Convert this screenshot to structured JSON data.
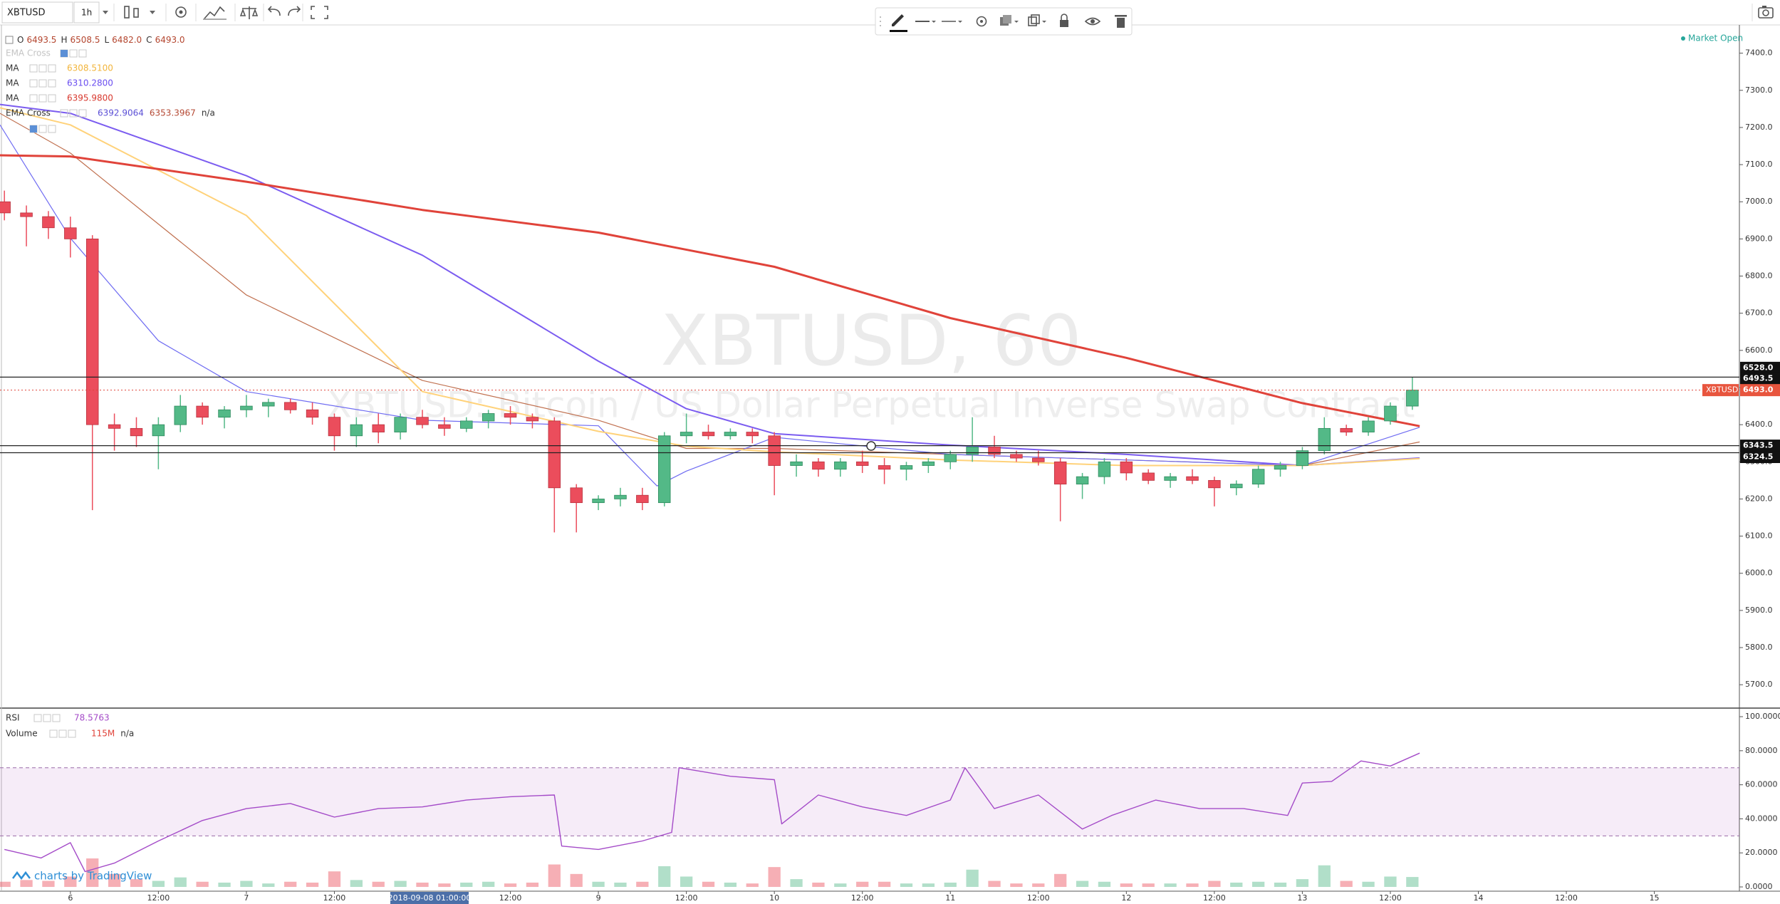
{
  "chart_data": {
    "type": "candlestick",
    "symbol": "XBTUSD",
    "interval": "1h",
    "watermark": "XBTUSD, 60",
    "description": "XBTUSD: Bitcoin / US Dollar Perpetual Inverse Swap Contract",
    "status": "Market Open",
    "branding": "charts by TradingView",
    "crosshair_time": "2018-09-08 01:00:00",
    "ohlc_legend": [
      {
        "key": "O",
        "value": "6493.5"
      },
      {
        "key": "H",
        "value": "6508.5"
      },
      {
        "key": "L",
        "value": "6482.0"
      },
      {
        "key": "C",
        "value": "6493.0"
      }
    ],
    "studies": [
      {
        "name": "EMA Cross",
        "faded": true,
        "values": []
      },
      {
        "name": "MA",
        "faded": false,
        "values": [
          "6308.5100"
        ],
        "colors": [
          "#f2b53c"
        ]
      },
      {
        "name": "MA",
        "faded": false,
        "values": [
          "6310.2800"
        ],
        "colors": [
          "#6a4ef0"
        ]
      },
      {
        "name": "MA",
        "faded": false,
        "values": [
          "6395.9800"
        ],
        "colors": [
          "#d8392f"
        ]
      },
      {
        "name": "EMA Cross",
        "faded": false,
        "values": [
          "6392.9064",
          "6353.3967",
          "n/a"
        ],
        "colors": [
          "#5b4fd6",
          "#b54a35",
          "#333333"
        ]
      }
    ],
    "up_color": "#53b987",
    "down_color": "#eb4d5c",
    "x": [
      -9,
      -6,
      -3,
      0,
      3,
      6,
      9,
      12,
      15,
      18,
      21,
      24,
      27,
      30,
      33,
      36,
      39,
      42,
      45,
      48,
      51,
      54,
      57,
      60,
      63,
      66,
      69,
      72,
      75,
      78,
      81,
      84,
      87,
      90,
      93,
      96,
      99,
      102,
      105,
      108,
      111,
      114,
      117,
      120,
      123,
      126,
      129,
      132,
      135,
      138,
      141,
      144,
      147,
      150,
      153,
      156,
      159,
      162,
      165,
      168,
      171,
      174,
      177,
      180,
      183
    ],
    "ohlc": [
      [
        7000,
        7030,
        6950,
        6970
      ],
      [
        6970,
        6990,
        6880,
        6960
      ],
      [
        6960,
        6975,
        6900,
        6930
      ],
      [
        6930,
        6960,
        6850,
        6900
      ],
      [
        6900,
        6910,
        6170,
        6400
      ],
      [
        6400,
        6430,
        6330,
        6390
      ],
      [
        6390,
        6420,
        6340,
        6370
      ],
      [
        6370,
        6420,
        6280,
        6400
      ],
      [
        6400,
        6480,
        6380,
        6450
      ],
      [
        6450,
        6460,
        6400,
        6420
      ],
      [
        6420,
        6450,
        6390,
        6440
      ],
      [
        6440,
        6480,
        6420,
        6450
      ],
      [
        6450,
        6470,
        6420,
        6460
      ],
      [
        6460,
        6470,
        6430,
        6440
      ],
      [
        6440,
        6460,
        6400,
        6420
      ],
      [
        6420,
        6430,
        6330,
        6370
      ],
      [
        6370,
        6420,
        6340,
        6400
      ],
      [
        6400,
        6430,
        6350,
        6380
      ],
      [
        6380,
        6430,
        6360,
        6420
      ],
      [
        6420,
        6440,
        6390,
        6400
      ],
      [
        6400,
        6420,
        6370,
        6390
      ],
      [
        6390,
        6420,
        6380,
        6410
      ],
      [
        6410,
        6440,
        6390,
        6430
      ],
      [
        6430,
        6450,
        6400,
        6420
      ],
      [
        6420,
        6430,
        6390,
        6410
      ],
      [
        6410,
        6420,
        6110,
        6230
      ],
      [
        6230,
        6240,
        6110,
        6190
      ],
      [
        6190,
        6210,
        6170,
        6200
      ],
      [
        6200,
        6230,
        6180,
        6210
      ],
      [
        6210,
        6230,
        6170,
        6190
      ],
      [
        6190,
        6380,
        6180,
        6370
      ],
      [
        6370,
        6430,
        6350,
        6380
      ],
      [
        6380,
        6400,
        6360,
        6370
      ],
      [
        6370,
        6390,
        6360,
        6380
      ],
      [
        6380,
        6390,
        6350,
        6370
      ],
      [
        6370,
        6380,
        6210,
        6290
      ],
      [
        6290,
        6320,
        6260,
        6300
      ],
      [
        6300,
        6310,
        6260,
        6280
      ],
      [
        6280,
        6310,
        6260,
        6300
      ],
      [
        6300,
        6330,
        6270,
        6290
      ],
      [
        6290,
        6310,
        6240,
        6280
      ],
      [
        6280,
        6300,
        6250,
        6290
      ],
      [
        6290,
        6310,
        6270,
        6300
      ],
      [
        6300,
        6330,
        6280,
        6320
      ],
      [
        6320,
        6420,
        6300,
        6340
      ],
      [
        6340,
        6370,
        6310,
        6320
      ],
      [
        6320,
        6330,
        6300,
        6310
      ],
      [
        6310,
        6330,
        6290,
        6300
      ],
      [
        6300,
        6310,
        6140,
        6240
      ],
      [
        6240,
        6270,
        6200,
        6260
      ],
      [
        6260,
        6310,
        6240,
        6300
      ],
      [
        6300,
        6310,
        6250,
        6270
      ],
      [
        6270,
        6280,
        6240,
        6250
      ],
      [
        6250,
        6270,
        6230,
        6260
      ],
      [
        6260,
        6280,
        6240,
        6250
      ],
      [
        6250,
        6260,
        6180,
        6230
      ],
      [
        6230,
        6250,
        6210,
        6240
      ],
      [
        6240,
        6290,
        6230,
        6280
      ],
      [
        6280,
        6300,
        6260,
        6290
      ],
      [
        6290,
        6340,
        6280,
        6330
      ],
      [
        6330,
        6420,
        6320,
        6390
      ],
      [
        6390,
        6400,
        6370,
        6380
      ],
      [
        6380,
        6420,
        6370,
        6410
      ],
      [
        6410,
        6460,
        6400,
        6450
      ],
      [
        6450,
        6528,
        6440,
        6493
      ]
    ],
    "xlim": [
      -9.6,
      227.6
    ],
    "xticks": [
      {
        "value": 0,
        "label": "6"
      },
      {
        "value": 12,
        "label": "12:00"
      },
      {
        "value": 24,
        "label": "7"
      },
      {
        "value": 36,
        "label": "12:00"
      },
      {
        "value": 60,
        "label": "12:00"
      },
      {
        "value": 72,
        "label": "9"
      },
      {
        "value": 84,
        "label": "12:00"
      },
      {
        "value": 96,
        "label": "10"
      },
      {
        "value": 108,
        "label": "12:00"
      },
      {
        "value": 120,
        "label": "11"
      },
      {
        "value": 132,
        "label": "12:00"
      },
      {
        "value": 144,
        "label": "12"
      },
      {
        "value": 156,
        "label": "12:00"
      },
      {
        "value": 168,
        "label": "13"
      },
      {
        "value": 180,
        "label": "12:00"
      },
      {
        "value": 192,
        "label": "14"
      },
      {
        "value": 204,
        "label": "12:00"
      },
      {
        "value": 216,
        "label": "15"
      }
    ],
    "ylim": [
      5639,
      7476
    ],
    "yticks": [
      {
        "value": 5700,
        "label": "5700.0"
      },
      {
        "value": 5800,
        "label": "5800.0"
      },
      {
        "value": 5900,
        "label": "5900.0"
      },
      {
        "value": 6000,
        "label": "6000.0"
      },
      {
        "value": 6100,
        "label": "6100.0"
      },
      {
        "value": 6200,
        "label": "6200.0"
      },
      {
        "value": 6300,
        "label": "6300.0"
      },
      {
        "value": 6400,
        "label": "6400.0"
      },
      {
        "value": 6500,
        "label": "6500.0"
      },
      {
        "value": 6600,
        "label": "6600.0"
      },
      {
        "value": 6700,
        "label": "6700.0"
      },
      {
        "value": 6800,
        "label": "6800.0"
      },
      {
        "value": 6900,
        "label": "6900.0"
      },
      {
        "value": 7000,
        "label": "7000.0"
      },
      {
        "value": 7100,
        "label": "7100.0"
      },
      {
        "value": 7200,
        "label": "7200.0"
      },
      {
        "value": 7300,
        "label": "7300.0"
      },
      {
        "value": 7400,
        "label": "7400.0"
      }
    ],
    "lines": [
      {
        "color": "#e0433a",
        "width": 3,
        "x": [
          -9.6,
          0,
          24,
          48,
          72,
          96,
          120,
          144,
          168,
          184
        ],
        "values": [
          7125,
          7122,
          7054,
          6978,
          6917,
          6825,
          6687,
          6580,
          6458,
          6395.98
        ]
      },
      {
        "color": "#ffd27a",
        "width": 2,
        "x": [
          -9.6,
          0,
          24,
          48,
          72,
          84,
          96,
          120,
          144,
          168,
          184
        ],
        "values": [
          7253,
          7207,
          6963,
          6489,
          6382,
          6342,
          6327,
          6305,
          6290,
          6290,
          6308.51
        ]
      },
      {
        "color": "#7b5cf0",
        "width": 2,
        "x": [
          -9.6,
          0,
          24,
          48,
          72,
          84,
          96,
          120,
          144,
          168,
          184
        ],
        "values": [
          7262,
          7238,
          7070,
          6856,
          6571,
          6443,
          6376,
          6345,
          6320,
          6290,
          6310.28
        ]
      },
      {
        "color": "#6f6cf2",
        "width": 1.2,
        "x": [
          -9.6,
          0,
          12,
          24,
          48,
          72,
          80,
          84,
          96,
          120,
          144,
          168,
          184
        ],
        "values": [
          7207,
          6902,
          6626,
          6489,
          6412,
          6397,
          6235,
          6275,
          6366,
          6320,
          6305,
          6290,
          6392.91
        ]
      },
      {
        "color": "#c0704f",
        "width": 1.2,
        "x": [
          -9.6,
          0,
          24,
          48,
          72,
          84,
          96,
          120,
          144,
          168,
          184
        ],
        "values": [
          7238,
          7131,
          6749,
          6519,
          6412,
          6336,
          6336,
          6320,
          6305,
          6290,
          6353.4
        ]
      }
    ],
    "levels": [
      {
        "value": 6528,
        "label": "6528.0"
      },
      {
        "value": 6343.5,
        "label": "6343.5"
      },
      {
        "value": 6324.5,
        "label": "6324.5"
      }
    ],
    "close_tag": {
      "value": 6493.5,
      "label": "6493.5"
    },
    "last_price": {
      "value": 6493,
      "label": "6493.0"
    },
    "rsi": {
      "name": "RSI",
      "color": "#a44bc8",
      "x": [
        -9,
        -4,
        0,
        2,
        6,
        12,
        18,
        24,
        30,
        36,
        42,
        48,
        54,
        60,
        66,
        67,
        72,
        78,
        82,
        83,
        90,
        96,
        97,
        102,
        108,
        114,
        120,
        122,
        126,
        132,
        138,
        142,
        148,
        154,
        160,
        166,
        168,
        172,
        176,
        180,
        184
      ],
      "values": [
        22,
        17,
        26,
        9,
        14,
        27,
        39,
        46,
        49,
        41,
        46,
        47,
        51,
        53,
        54,
        24,
        22,
        27,
        32,
        70,
        65,
        63,
        37,
        54,
        47,
        42,
        51,
        70,
        46,
        54,
        34,
        42,
        51,
        46,
        46,
        42,
        61,
        62,
        74,
        71,
        78.5763
      ],
      "ylim": [
        -2.5,
        104.2
      ],
      "yticks": [
        {
          "value": 0,
          "label": "0.0000"
        },
        {
          "value": 20,
          "label": "20.0000"
        },
        {
          "value": 40,
          "label": "40.0000"
        },
        {
          "value": 60,
          "label": "60.0000"
        },
        {
          "value": 80,
          "label": "80.0000"
        },
        {
          "value": 100,
          "label": "100.0000"
        }
      ],
      "band": [
        30,
        70
      ]
    },
    "volume": {
      "name": "Volume",
      "value_label": "115M",
      "extra": "n/a",
      "values": [
        60,
        80,
        70,
        120,
        330,
        150,
        90,
        70,
        110,
        60,
        50,
        70,
        40,
        60,
        50,
        180,
        80,
        60,
        70,
        50,
        40,
        50,
        60,
        40,
        50,
        260,
        150,
        60,
        50,
        60,
        240,
        120,
        60,
        50,
        40,
        230,
        90,
        50,
        40,
        60,
        60,
        40,
        40,
        50,
        200,
        70,
        40,
        40,
        150,
        70,
        60,
        40,
        40,
        40,
        40,
        70,
        50,
        60,
        50,
        90,
        250,
        70,
        60,
        120,
        115
      ]
    }
  }
}
